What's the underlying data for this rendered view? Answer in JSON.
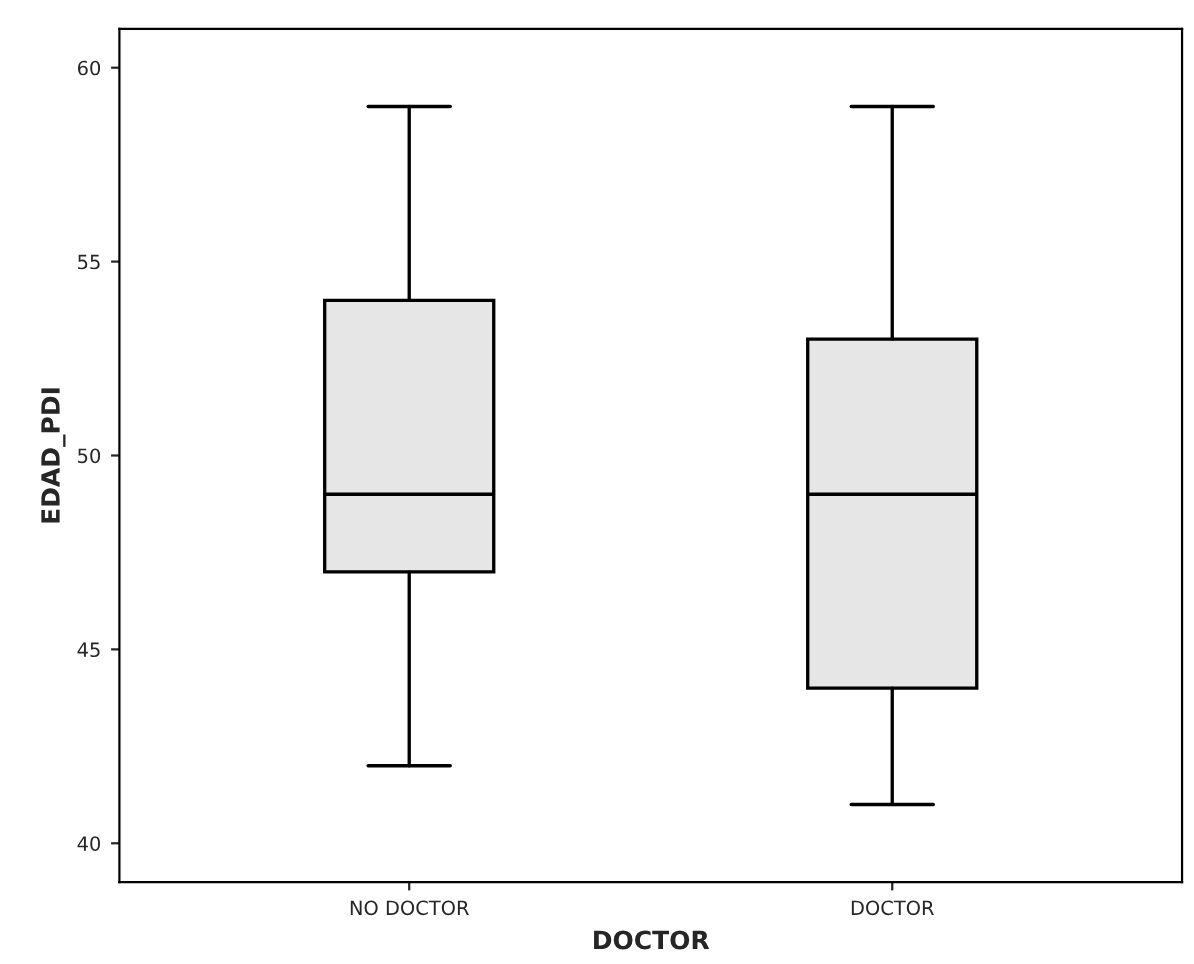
{
  "chart_data": {
    "type": "box",
    "xlabel": "DOCTOR",
    "ylabel": "EDAD_PDI",
    "categories": [
      "NO DOCTOR",
      "DOCTOR"
    ],
    "boxes": [
      {
        "low": 42,
        "q1": 47,
        "median": 49,
        "q3": 54,
        "high": 59
      },
      {
        "low": 41,
        "q1": 44,
        "median": 49,
        "q3": 53,
        "high": 59
      }
    ],
    "color": "#e6e6e6",
    "ylim": [
      39,
      61
    ],
    "yticks": [
      40,
      45,
      50,
      55,
      60
    ],
    "grid": false
  }
}
